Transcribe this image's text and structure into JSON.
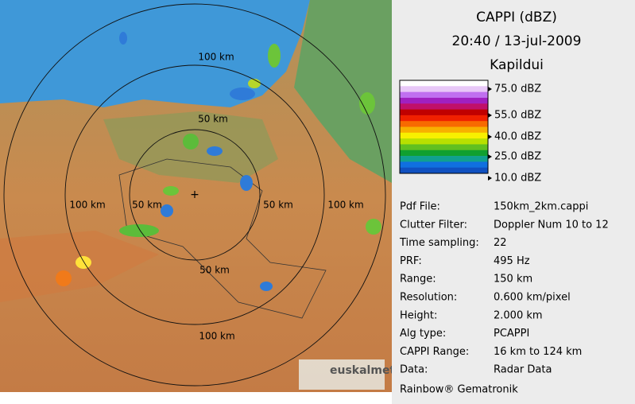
{
  "header": {
    "title": "CAPPI (dBZ)",
    "datetime": "20:40 / 13-jul-2009",
    "site": "Kapildui"
  },
  "legend": [
    "75.0 dBZ",
    "55.0 dBZ",
    "40.0 dBZ",
    "25.0 dBZ",
    "10.0 dBZ"
  ],
  "info": [
    [
      "Pdf File:",
      "150km_2km.cappi"
    ],
    [
      "Clutter Filter:",
      "Doppler Num 10 to 12"
    ],
    [
      "Time sampling:",
      "22"
    ],
    [
      "PRF:",
      "495 Hz"
    ],
    [
      "Range:",
      "150 km"
    ],
    [
      "Resolution:",
      "0.600 km/pixel"
    ],
    [
      "Height:",
      "2.000 km"
    ],
    [
      "Alg type:",
      "PCAPPI"
    ],
    [
      "CAPPI Range:",
      "16 km to 124 km"
    ],
    [
      "Data:",
      "Radar Data"
    ]
  ],
  "footer": "Rainbow® Gematronik",
  "map": {
    "range_labels": [
      "100 km",
      "50 km",
      "100 km",
      "50 km",
      "50 km",
      "100 km",
      "50 km",
      "100 km"
    ],
    "logo": "euskalmet"
  }
}
